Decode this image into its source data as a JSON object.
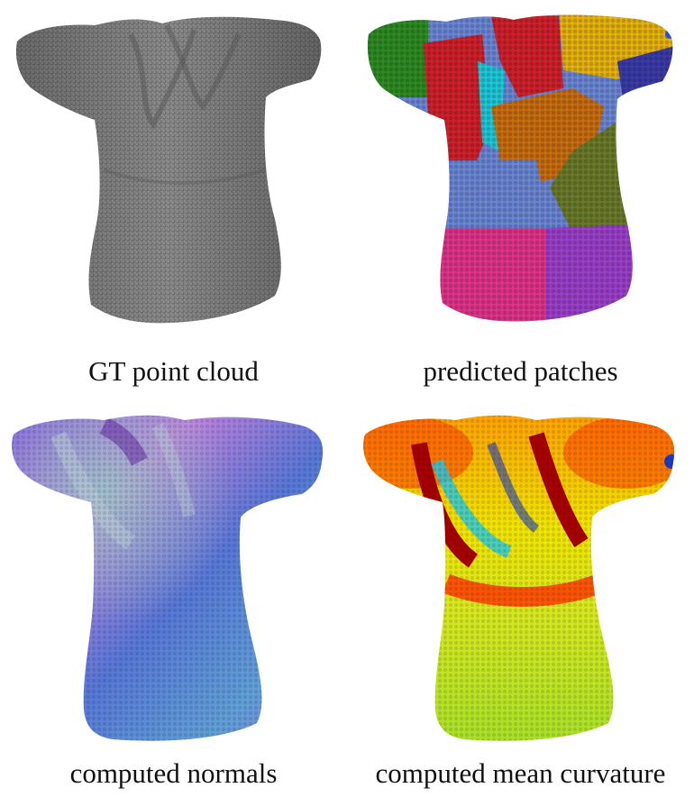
{
  "figure": {
    "panels": [
      {
        "id": "gt",
        "caption": "GT point cloud",
        "render": "gray-point-cloud"
      },
      {
        "id": "patch",
        "caption": "predicted patches",
        "render": "segmented-patches"
      },
      {
        "id": "norm",
        "caption": "computed normals",
        "render": "normal-map"
      },
      {
        "id": "curv",
        "caption": "computed mean curvature",
        "render": "curvature-map"
      }
    ],
    "colors": {
      "gray": "#7d7d7d",
      "patch_colors": [
        "#d0202b",
        "#2e8b22",
        "#e6b210",
        "#c86d10",
        "#6b7a2a",
        "#6b86d4",
        "#e0338a",
        "#9a3fc9",
        "#3a3aa8",
        "#1ec8d8",
        "#2050e0"
      ],
      "normals": [
        "#7f60e0",
        "#60a0d8",
        "#c080e0",
        "#5878d8",
        "#9ad0c8"
      ],
      "curvature": [
        "#a80000",
        "#ff3a00",
        "#ff9d00",
        "#f2e400",
        "#a8e02a",
        "#20c8e8",
        "#1a3cc8"
      ]
    }
  }
}
